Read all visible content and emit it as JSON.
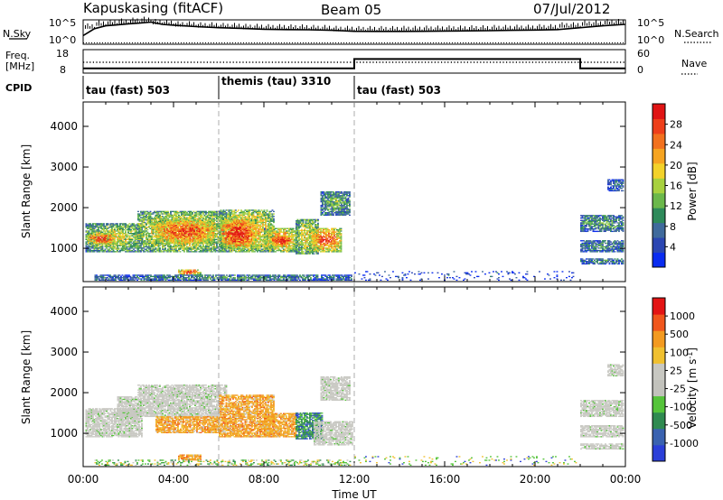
{
  "header": {
    "title": "Kapuskasing (fitACF)",
    "beam": "Beam 05",
    "date": "07/Jul/2012"
  },
  "chart_data": [
    {
      "type": "line",
      "name": "noise",
      "left_label": "N.Sky",
      "right_label": "N.Search",
      "left_ticks": [
        "10^5",
        "10^0"
      ],
      "right_ticks": [
        "10^5",
        "10^0"
      ],
      "scale": "log",
      "ylim": [
        1,
        100000
      ],
      "x": [
        0,
        0.5,
        1,
        1.5,
        2,
        2.5,
        3,
        3.5,
        4,
        5,
        6,
        7,
        8,
        9,
        10,
        11,
        12,
        13,
        14,
        15,
        16,
        17,
        18,
        19,
        20,
        21,
        22,
        23,
        24
      ],
      "series": [
        {
          "values": [
            60,
            1500,
            6000,
            9000,
            15000,
            22000,
            35000,
            12000,
            8000,
            4000,
            2500,
            1800,
            1200,
            1000,
            900,
            700,
            450,
            420,
            420,
            450,
            500,
            550,
            600,
            700,
            800,
            1000,
            2500,
            6000,
            12000
          ]
        }
      ]
    },
    {
      "type": "line",
      "name": "frequency",
      "left_label": "Freq. [MHz]",
      "right_label": "Nave",
      "left_ticks": [
        "18",
        "8"
      ],
      "right_ticks": [
        "60",
        "0"
      ],
      "ylim": [
        8,
        18
      ],
      "x": [
        0,
        12,
        12,
        22,
        22,
        24
      ],
      "series": [
        {
          "values": [
            10,
            10,
            14,
            14,
            10,
            10
          ]
        }
      ]
    },
    {
      "type": "table",
      "name": "cpid",
      "label": "CPID",
      "segments": [
        {
          "start": 0,
          "end": 6,
          "text": "tau (fast) 503"
        },
        {
          "start": 6,
          "end": 12,
          "text": "themis (tau) 3310"
        },
        {
          "start": 12,
          "end": 24,
          "text": "tau (fast) 503"
        }
      ]
    },
    {
      "type": "heatmap",
      "name": "power",
      "ylabel": "Slant Range [km]",
      "yticks": [
        1000,
        2000,
        3000,
        4000
      ],
      "ylim": [
        180,
        4600
      ],
      "xlim": [
        0,
        24
      ],
      "colorbar": {
        "label": "Power [dB]",
        "ticks": [
          "4",
          "8",
          "12",
          "16",
          "20",
          "24",
          "28"
        ],
        "colors": [
          "#0a2cf0",
          "#2b46b2",
          "#3f6a9c",
          "#2e8a5a",
          "#6bb84b",
          "#a8d13f",
          "#f3d22a",
          "#f6a421",
          "#f2711e",
          "#ee3f1a",
          "#e01414"
        ]
      },
      "blobs": [
        {
          "t0": 0.1,
          "t1": 2.6,
          "r0": 900,
          "r1": 1600,
          "level": 0.55
        },
        {
          "t0": 0.2,
          "t1": 1.4,
          "r0": 1100,
          "r1": 1350,
          "level": 0.95
        },
        {
          "t0": 2.4,
          "t1": 6.3,
          "r0": 900,
          "r1": 1900,
          "level": 0.65
        },
        {
          "t0": 3.2,
          "t1": 5.8,
          "r0": 1100,
          "r1": 1700,
          "level": 0.9
        },
        {
          "t0": 6.0,
          "t1": 8.4,
          "r0": 900,
          "r1": 1950,
          "level": 0.7
        },
        {
          "t0": 6.1,
          "t1": 7.6,
          "r0": 1000,
          "r1": 1700,
          "level": 0.98
        },
        {
          "t0": 8.0,
          "t1": 9.4,
          "r0": 900,
          "r1": 1500,
          "level": 0.75
        },
        {
          "t0": 8.3,
          "t1": 9.2,
          "r0": 1050,
          "r1": 1300,
          "level": 1.0
        },
        {
          "t0": 9.4,
          "t1": 10.4,
          "r0": 850,
          "r1": 1700,
          "level": 0.6
        },
        {
          "t0": 10.0,
          "t1": 11.4,
          "r0": 900,
          "r1": 1500,
          "level": 0.85
        },
        {
          "t0": 10.5,
          "t1": 11.8,
          "r0": 1800,
          "r1": 2400,
          "level": 0.4
        },
        {
          "t0": 4.2,
          "t1": 5.2,
          "r0": 330,
          "r1": 470,
          "level": 0.85
        },
        {
          "t0": 0.5,
          "t1": 11.9,
          "r0": 200,
          "r1": 330,
          "level": 0.3
        },
        {
          "t0": 12.0,
          "t1": 21.8,
          "r0": 200,
          "r1": 420,
          "level": 0.15,
          "sparse": true
        },
        {
          "t0": 22.0,
          "t1": 23.9,
          "r0": 1400,
          "r1": 1800,
          "level": 0.35
        },
        {
          "t0": 22.0,
          "t1": 23.9,
          "r0": 900,
          "r1": 1200,
          "level": 0.3
        },
        {
          "t0": 22.0,
          "t1": 23.9,
          "r0": 600,
          "r1": 750,
          "level": 0.3
        },
        {
          "t0": 23.2,
          "t1": 23.9,
          "r0": 2400,
          "r1": 2700,
          "level": 0.2
        }
      ]
    },
    {
      "type": "heatmap",
      "name": "velocity",
      "ylabel": "Slant Range [km]",
      "xlabel": "Time UT",
      "yticks": [
        1000,
        2000,
        3000,
        4000
      ],
      "xticks": [
        "00:00",
        "04:00",
        "08:00",
        "12:00",
        "16:00",
        "20:00",
        "00:00"
      ],
      "ylim": [
        180,
        4600
      ],
      "xlim": [
        0,
        24
      ],
      "colorbar": {
        "label": "Velocity [m s^-1]",
        "ticks": [
          "1000",
          "500",
          "100",
          "25",
          "-25",
          "-100",
          "-500",
          "-1000"
        ],
        "colors": [
          "#2b3fd8",
          "#3a62b0",
          "#2f8a50",
          "#55c43a",
          "#c2c2bc",
          "#c8c8c2",
          "#f0c030",
          "#f39a20",
          "#f0561c",
          "#e31414"
        ]
      },
      "ground_scatter_color": "#c8c8c2",
      "blobs": [
        {
          "t0": 0.1,
          "t1": 2.6,
          "r0": 900,
          "r1": 1600,
          "kind": "gs"
        },
        {
          "t0": 2.4,
          "t1": 6.3,
          "r0": 1900,
          "r1": 2200,
          "kind": "gs"
        },
        {
          "t0": 1.5,
          "t1": 6.0,
          "r0": 1400,
          "r1": 1900,
          "kind": "gs"
        },
        {
          "t0": 3.2,
          "t1": 6.0,
          "r0": 1000,
          "r1": 1400,
          "kind": "neg"
        },
        {
          "t0": 6.0,
          "t1": 8.4,
          "r0": 900,
          "r1": 1950,
          "kind": "neg"
        },
        {
          "t0": 8.0,
          "t1": 9.4,
          "r0": 900,
          "r1": 1500,
          "kind": "neg"
        },
        {
          "t0": 9.4,
          "t1": 10.6,
          "r0": 850,
          "r1": 1500,
          "kind": "pos"
        },
        {
          "t0": 10.2,
          "t1": 11.9,
          "r0": 700,
          "r1": 1300,
          "kind": "gs"
        },
        {
          "t0": 10.5,
          "t1": 11.8,
          "r0": 1800,
          "r1": 2400,
          "kind": "gs"
        },
        {
          "t0": 4.2,
          "t1": 5.2,
          "r0": 330,
          "r1": 470,
          "kind": "neg"
        },
        {
          "t0": 0.5,
          "t1": 11.9,
          "r0": 200,
          "r1": 330,
          "kind": "mix"
        },
        {
          "t0": 12.0,
          "t1": 21.8,
          "r0": 200,
          "r1": 420,
          "kind": "sparse"
        },
        {
          "t0": 22.0,
          "t1": 23.9,
          "r0": 1400,
          "r1": 1800,
          "kind": "gs"
        },
        {
          "t0": 22.0,
          "t1": 23.9,
          "r0": 900,
          "r1": 1200,
          "kind": "gs"
        },
        {
          "t0": 22.0,
          "t1": 23.9,
          "r0": 600,
          "r1": 750,
          "kind": "gs"
        },
        {
          "t0": 23.2,
          "t1": 23.9,
          "r0": 2400,
          "r1": 2700,
          "kind": "gs"
        }
      ]
    }
  ]
}
